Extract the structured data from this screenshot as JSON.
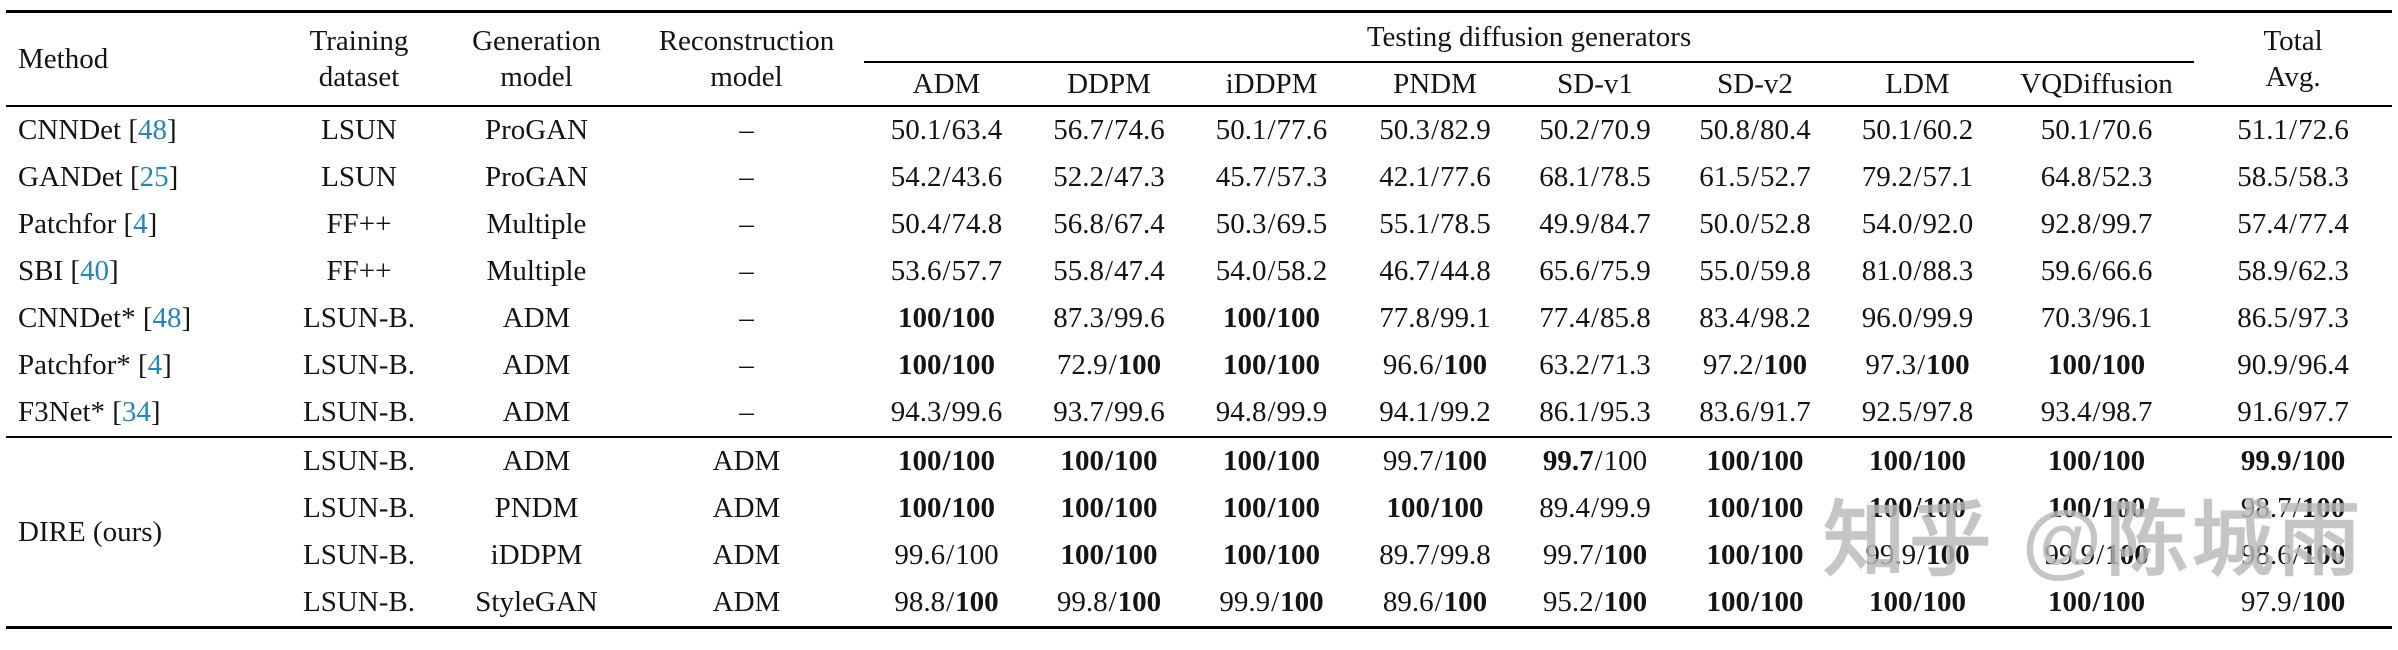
{
  "header": {
    "method": "Method",
    "training": {
      "l1": "Training",
      "l2": "dataset"
    },
    "generation": {
      "l1": "Generation",
      "l2": "model"
    },
    "reconstruction": {
      "l1": "Reconstruction",
      "l2": "model"
    },
    "testing_group": "Testing diffusion generators",
    "generators": [
      "ADM",
      "DDPM",
      "iDDPM",
      "PNDM",
      "SD-v1",
      "SD-v2",
      "LDM",
      "VQDiffusion"
    ],
    "total": {
      "l1": "Total",
      "l2": "Avg."
    }
  },
  "rows": [
    {
      "method": "CNNDet",
      "ref": "48",
      "training": "LSUN",
      "generation": "ProGAN",
      "reconstruction": "–",
      "cells": [
        [
          "50.1",
          "63.4",
          0,
          0
        ],
        [
          "56.7",
          "74.6",
          0,
          0
        ],
        [
          "50.1",
          "77.6",
          0,
          0
        ],
        [
          "50.3",
          "82.9",
          0,
          0
        ],
        [
          "50.2",
          "70.9",
          0,
          0
        ],
        [
          "50.8",
          "80.4",
          0,
          0
        ],
        [
          "50.1",
          "60.2",
          0,
          0
        ],
        [
          "50.1",
          "70.6",
          0,
          0
        ]
      ],
      "total": [
        "51.1",
        "72.6",
        0,
        0
      ]
    },
    {
      "method": "GANDet",
      "ref": "25",
      "training": "LSUN",
      "generation": "ProGAN",
      "reconstruction": "–",
      "cells": [
        [
          "54.2",
          "43.6",
          0,
          0
        ],
        [
          "52.2",
          "47.3",
          0,
          0
        ],
        [
          "45.7",
          "57.3",
          0,
          0
        ],
        [
          "42.1",
          "77.6",
          0,
          0
        ],
        [
          "68.1",
          "78.5",
          0,
          0
        ],
        [
          "61.5",
          "52.7",
          0,
          0
        ],
        [
          "79.2",
          "57.1",
          0,
          0
        ],
        [
          "64.8",
          "52.3",
          0,
          0
        ]
      ],
      "total": [
        "58.5",
        "58.3",
        0,
        0
      ]
    },
    {
      "method": "Patchfor",
      "ref": "4",
      "training": "FF++",
      "generation": "Multiple",
      "reconstruction": "–",
      "cells": [
        [
          "50.4",
          "74.8",
          0,
          0
        ],
        [
          "56.8",
          "67.4",
          0,
          0
        ],
        [
          "50.3",
          "69.5",
          0,
          0
        ],
        [
          "55.1",
          "78.5",
          0,
          0
        ],
        [
          "49.9",
          "84.7",
          0,
          0
        ],
        [
          "50.0",
          "52.8",
          0,
          0
        ],
        [
          "54.0",
          "92.0",
          0,
          0
        ],
        [
          "92.8",
          "99.7",
          0,
          0
        ]
      ],
      "total": [
        "57.4",
        "77.4",
        0,
        0
      ]
    },
    {
      "method": "SBI",
      "ref": "40",
      "training": "FF++",
      "generation": "Multiple",
      "reconstruction": "–",
      "cells": [
        [
          "53.6",
          "57.7",
          0,
          0
        ],
        [
          "55.8",
          "47.4",
          0,
          0
        ],
        [
          "54.0",
          "58.2",
          0,
          0
        ],
        [
          "46.7",
          "44.8",
          0,
          0
        ],
        [
          "65.6",
          "75.9",
          0,
          0
        ],
        [
          "55.0",
          "59.8",
          0,
          0
        ],
        [
          "81.0",
          "88.3",
          0,
          0
        ],
        [
          "59.6",
          "66.6",
          0,
          0
        ]
      ],
      "total": [
        "58.9",
        "62.3",
        0,
        0
      ]
    },
    {
      "method": "CNNDet*",
      "ref": "48",
      "training": "LSUN-B.",
      "generation": "ADM",
      "reconstruction": "–",
      "cells": [
        [
          "100",
          "100",
          1,
          1
        ],
        [
          "87.3",
          "99.6",
          0,
          0
        ],
        [
          "100",
          "100",
          1,
          1
        ],
        [
          "77.8",
          "99.1",
          0,
          0
        ],
        [
          "77.4",
          "85.8",
          0,
          0
        ],
        [
          "83.4",
          "98.2",
          0,
          0
        ],
        [
          "96.0",
          "99.9",
          0,
          0
        ],
        [
          "70.3",
          "96.1",
          0,
          0
        ]
      ],
      "total": [
        "86.5",
        "97.3",
        0,
        0
      ]
    },
    {
      "method": "Patchfor*",
      "ref": "4",
      "training": "LSUN-B.",
      "generation": "ADM",
      "reconstruction": "–",
      "cells": [
        [
          "100",
          "100",
          1,
          1
        ],
        [
          "72.9",
          "100",
          0,
          1
        ],
        [
          "100",
          "100",
          1,
          1
        ],
        [
          "96.6",
          "100",
          0,
          1
        ],
        [
          "63.2",
          "71.3",
          0,
          0
        ],
        [
          "97.2",
          "100",
          0,
          1
        ],
        [
          "97.3",
          "100",
          0,
          1
        ],
        [
          "100",
          "100",
          1,
          1
        ]
      ],
      "total": [
        "90.9",
        "96.4",
        0,
        0
      ]
    },
    {
      "method": "F3Net*",
      "ref": "34",
      "training": "LSUN-B.",
      "generation": "ADM",
      "reconstruction": "–",
      "cells": [
        [
          "94.3",
          "99.6",
          0,
          0
        ],
        [
          "93.7",
          "99.6",
          0,
          0
        ],
        [
          "94.8",
          "99.9",
          0,
          0
        ],
        [
          "94.1",
          "99.2",
          0,
          0
        ],
        [
          "86.1",
          "95.3",
          0,
          0
        ],
        [
          "83.6",
          "91.7",
          0,
          0
        ],
        [
          "92.5",
          "97.8",
          0,
          0
        ],
        [
          "93.4",
          "98.7",
          0,
          0
        ]
      ],
      "total": [
        "91.6",
        "97.7",
        0,
        0
      ]
    }
  ],
  "dire": {
    "label": "DIRE (ours)",
    "rows": [
      {
        "training": "LSUN-B.",
        "generation": "ADM",
        "reconstruction": "ADM",
        "cells": [
          [
            "100",
            "100",
            1,
            1
          ],
          [
            "100",
            "100",
            1,
            1
          ],
          [
            "100",
            "100",
            1,
            1
          ],
          [
            "99.7",
            "100",
            0,
            1
          ],
          [
            "99.7",
            "100",
            1,
            0
          ],
          [
            "100",
            "100",
            1,
            1
          ],
          [
            "100",
            "100",
            1,
            1
          ],
          [
            "100",
            "100",
            1,
            1
          ]
        ],
        "total": [
          "99.9",
          "100",
          1,
          1
        ]
      },
      {
        "training": "LSUN-B.",
        "generation": "PNDM",
        "reconstruction": "ADM",
        "cells": [
          [
            "100",
            "100",
            1,
            1
          ],
          [
            "100",
            "100",
            1,
            1
          ],
          [
            "100",
            "100",
            1,
            1
          ],
          [
            "100",
            "100",
            1,
            1
          ],
          [
            "89.4",
            "99.9",
            0,
            0
          ],
          [
            "100",
            "100",
            1,
            1
          ],
          [
            "100",
            "100",
            1,
            1
          ],
          [
            "100",
            "100",
            1,
            1
          ]
        ],
        "total": [
          "98.7",
          "100",
          0,
          1
        ]
      },
      {
        "training": "LSUN-B.",
        "generation": "iDDPM",
        "reconstruction": "ADM",
        "cells": [
          [
            "99.6",
            "100",
            0,
            0
          ],
          [
            "100",
            "100",
            1,
            1
          ],
          [
            "100",
            "100",
            1,
            1
          ],
          [
            "89.7",
            "99.8",
            0,
            0
          ],
          [
            "99.7",
            "100",
            0,
            1
          ],
          [
            "100",
            "100",
            1,
            1
          ],
          [
            "99.9",
            "100",
            0,
            1
          ],
          [
            "99.9",
            "100",
            0,
            1
          ]
        ],
        "total": [
          "98.6",
          "100",
          0,
          1
        ]
      },
      {
        "training": "LSUN-B.",
        "generation": "StyleGAN",
        "reconstruction": "ADM",
        "cells": [
          [
            "98.8",
            "100",
            0,
            1
          ],
          [
            "99.8",
            "100",
            0,
            1
          ],
          [
            "99.9",
            "100",
            0,
            1
          ],
          [
            "89.6",
            "100",
            0,
            1
          ],
          [
            "95.2",
            "100",
            0,
            1
          ],
          [
            "100",
            "100",
            1,
            1
          ],
          [
            "100",
            "100",
            1,
            1
          ],
          [
            "100",
            "100",
            1,
            1
          ]
        ],
        "total": [
          "97.9",
          "100",
          0,
          1
        ]
      }
    ]
  },
  "watermark": {
    "text": "知乎 @陈城雨",
    "color": "#b9b9b9"
  },
  "colors": {
    "citation": "#1f87c4",
    "text": "#141414",
    "rule": "#000000"
  }
}
